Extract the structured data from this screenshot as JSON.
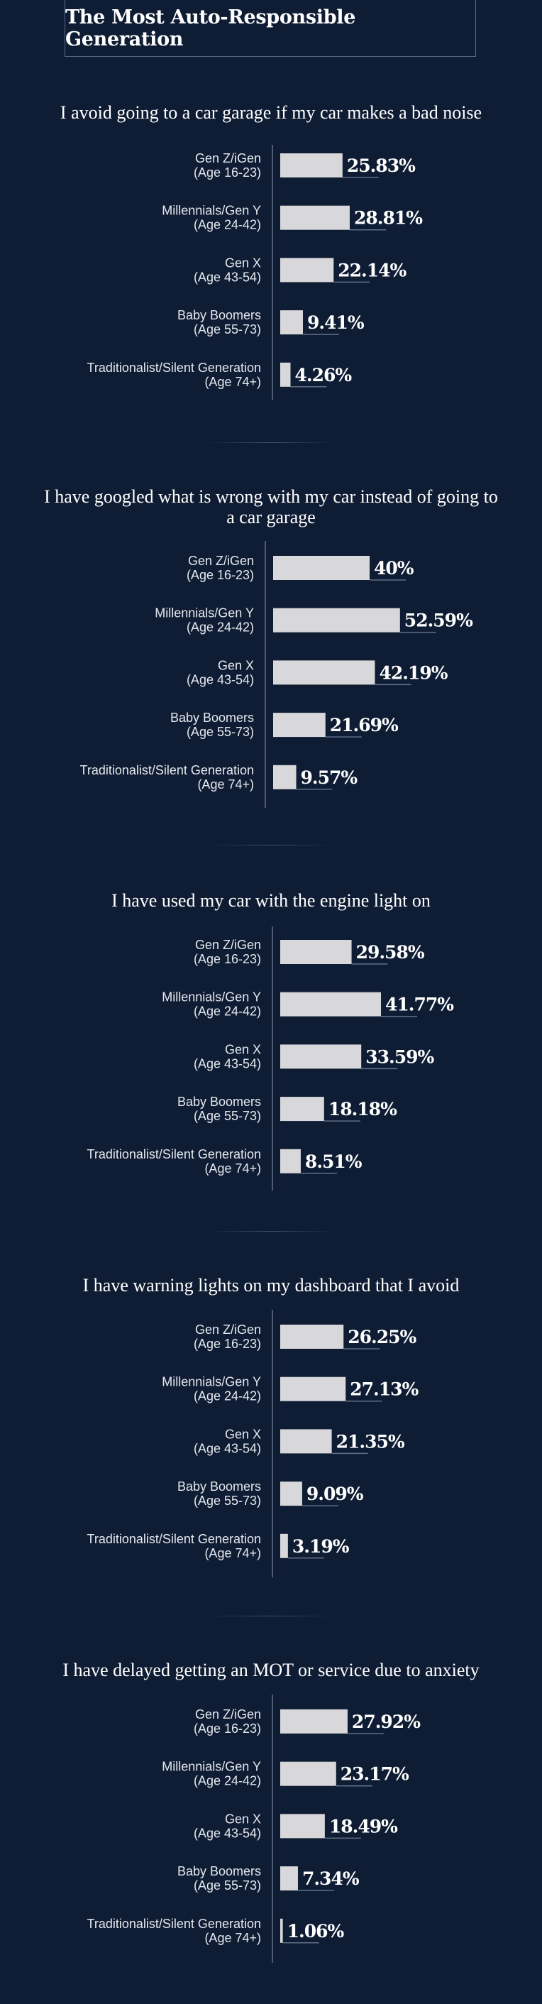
{
  "title": "The Most Auto-Responsible Generation",
  "colors": {
    "background": "#0f1d34",
    "bar": "#d8d8db",
    "axis": "#7a879c",
    "value_underline": "#5f6f88"
  },
  "chart_data": [
    {
      "type": "bar",
      "orientation": "horizontal",
      "title": "I avoid going to a car garage if my car makes a bad noise",
      "categories": [
        [
          "Gen Z/iGen",
          "(Age 16-23)"
        ],
        [
          "Millennials/Gen Y",
          "(Age 24-42)"
        ],
        [
          "Gen X",
          "(Age 43-54)"
        ],
        [
          "Baby Boomers",
          "(Age 55-73)"
        ],
        [
          "Traditionalist/Silent Generation",
          "(Age 74+)"
        ]
      ],
      "values": [
        25.83,
        28.81,
        22.14,
        9.41,
        4.26
      ],
      "labels": [
        "25.83%",
        "28.81%",
        "22.14%",
        "9.41%",
        "4.26%"
      ],
      "unit": "%"
    },
    {
      "type": "bar",
      "orientation": "horizontal",
      "title": "I have googled what is wrong with my car instead of going to a car garage",
      "categories": [
        [
          "Gen Z/iGen",
          "(Age 16-23)"
        ],
        [
          "Millennials/Gen Y",
          "(Age 24-42)"
        ],
        [
          "Gen X",
          "(Age 43-54)"
        ],
        [
          "Baby Boomers",
          "(Age 55-73)"
        ],
        [
          "Traditionalist/Silent Generation",
          "(Age 74+)"
        ]
      ],
      "values": [
        40,
        52.59,
        42.19,
        21.69,
        9.57
      ],
      "labels": [
        "40%",
        "52.59%",
        "42.19%",
        "21.69%",
        "9.57%"
      ],
      "unit": "%"
    },
    {
      "type": "bar",
      "orientation": "horizontal",
      "title": "I have used my car with the engine light on",
      "categories": [
        [
          "Gen Z/iGen",
          "(Age 16-23)"
        ],
        [
          "Millennials/Gen Y",
          "(Age 24-42)"
        ],
        [
          "Gen X",
          "(Age 43-54)"
        ],
        [
          "Baby Boomers",
          "(Age 55-73)"
        ],
        [
          "Traditionalist/Silent Generation",
          "(Age 74+)"
        ]
      ],
      "values": [
        29.58,
        41.77,
        33.59,
        18.18,
        8.51
      ],
      "labels": [
        "29.58%",
        "41.77%",
        "33.59%",
        "18.18%",
        "8.51%"
      ],
      "unit": "%"
    },
    {
      "type": "bar",
      "orientation": "horizontal",
      "title": "I have warning lights on my dashboard that I avoid",
      "categories": [
        [
          "Gen Z/iGen",
          "(Age 16-23)"
        ],
        [
          "Millennials/Gen Y",
          "(Age 24-42)"
        ],
        [
          "Gen X",
          "(Age 43-54)"
        ],
        [
          "Baby Boomers",
          "(Age 55-73)"
        ],
        [
          "Traditionalist/Silent Generation",
          "(Age 74+)"
        ]
      ],
      "values": [
        26.25,
        27.13,
        21.35,
        9.09,
        3.19
      ],
      "labels": [
        "26.25%",
        "27.13%",
        "21.35%",
        "9.09%",
        "3.19%"
      ],
      "unit": "%"
    },
    {
      "type": "bar",
      "orientation": "horizontal",
      "title": "I have delayed getting an MOT or service due to anxiety",
      "categories": [
        [
          "Gen Z/iGen",
          "(Age 16-23)"
        ],
        [
          "Millennials/Gen Y",
          "(Age 24-42)"
        ],
        [
          "Gen X",
          "(Age 43-54)"
        ],
        [
          "Baby Boomers",
          "(Age 55-73)"
        ],
        [
          "Traditionalist/Silent Generation",
          "(Age 74+)"
        ]
      ],
      "values": [
        27.92,
        23.17,
        18.49,
        7.34,
        1.06
      ],
      "labels": [
        "27.92%",
        "23.17%",
        "18.49%",
        "7.34%",
        "1.06%"
      ],
      "unit": "%"
    }
  ]
}
